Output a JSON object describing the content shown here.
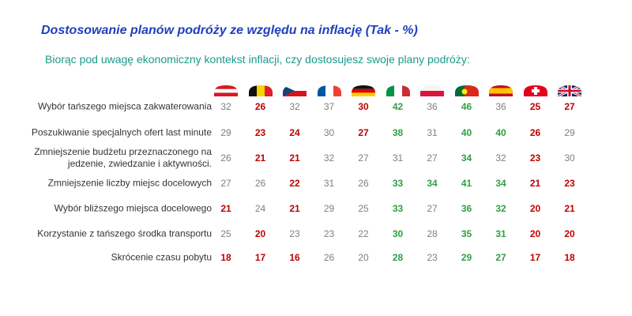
{
  "header": {
    "title": "Dostosowanie planów podróży ze względu na inflację (Tak - %)",
    "subtitle": "Biorąc pod uwagę ekonomiczny kontekst inflacji, czy dostosujesz swoje plany podróży:"
  },
  "table": {
    "rows": [
      {
        "label": "Wybór tańszego miejsca zakwaterowania",
        "values": [
          32,
          26,
          32,
          37,
          30,
          42,
          36,
          46,
          36,
          25,
          27
        ],
        "colors": [
          "#7f7f7f",
          "#c00000",
          "#7f7f7f",
          "#7f7f7f",
          "#c00000",
          "#2ea043",
          "#7f7f7f",
          "#2ea043",
          "#7f7f7f",
          "#c00000",
          "#c00000"
        ]
      },
      {
        "label": "Poszukiwanie specjalnych ofert last minute",
        "values": [
          29,
          23,
          24,
          30,
          27,
          38,
          31,
          40,
          40,
          26,
          29
        ],
        "colors": [
          "#7f7f7f",
          "#c00000",
          "#c00000",
          "#7f7f7f",
          "#c00000",
          "#2ea043",
          "#7f7f7f",
          "#2ea043",
          "#2ea043",
          "#c00000",
          "#7f7f7f"
        ]
      },
      {
        "label": "Zmniejszenie budżetu przeznaczonego na\njedzenie, zwiedzanie i aktywności.",
        "values": [
          26,
          21,
          21,
          32,
          27,
          31,
          27,
          34,
          32,
          23,
          30
        ],
        "colors": [
          "#7f7f7f",
          "#c00000",
          "#c00000",
          "#7f7f7f",
          "#7f7f7f",
          "#7f7f7f",
          "#7f7f7f",
          "#2ea043",
          "#7f7f7f",
          "#c00000",
          "#7f7f7f"
        ]
      },
      {
        "label": "Zmniejszenie liczby miejsc docelowych",
        "values": [
          27,
          26,
          22,
          31,
          26,
          33,
          34,
          41,
          34,
          21,
          23
        ],
        "colors": [
          "#7f7f7f",
          "#7f7f7f",
          "#c00000",
          "#7f7f7f",
          "#7f7f7f",
          "#2ea043",
          "#2ea043",
          "#2ea043",
          "#2ea043",
          "#c00000",
          "#c00000"
        ]
      },
      {
        "label": "Wybór bliższego miejsca docelowego",
        "values": [
          21,
          24,
          21,
          29,
          25,
          33,
          27,
          36,
          32,
          20,
          21
        ],
        "colors": [
          "#c00000",
          "#7f7f7f",
          "#c00000",
          "#7f7f7f",
          "#7f7f7f",
          "#2ea043",
          "#7f7f7f",
          "#2ea043",
          "#2ea043",
          "#c00000",
          "#c00000"
        ]
      },
      {
        "label": "Korzystanie z tańszego środka transportu",
        "values": [
          25,
          20,
          23,
          23,
          22,
          30,
          28,
          35,
          31,
          20,
          20
        ],
        "colors": [
          "#7f7f7f",
          "#c00000",
          "#7f7f7f",
          "#7f7f7f",
          "#7f7f7f",
          "#2ea043",
          "#7f7f7f",
          "#2ea043",
          "#2ea043",
          "#c00000",
          "#c00000"
        ]
      },
      {
        "label": "Skrócenie czasu pobytu",
        "values": [
          18,
          17,
          16,
          26,
          20,
          28,
          23,
          29,
          27,
          17,
          18
        ],
        "colors": [
          "#c00000",
          "#c00000",
          "#c00000",
          "#7f7f7f",
          "#7f7f7f",
          "#2ea043",
          "#7f7f7f",
          "#2ea043",
          "#2ea043",
          "#c00000",
          "#c00000"
        ]
      }
    ]
  }
}
